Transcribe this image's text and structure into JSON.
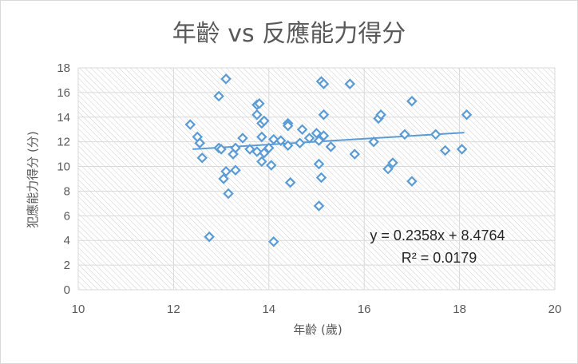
{
  "chart_data": {
    "type": "scatter",
    "title": "年齡 vs 反應能力得分",
    "xlabel": "年齡 (歲)",
    "ylabel": "犯應能力得分 (分)",
    "xlim": [
      10,
      20
    ],
    "ylim": [
      0,
      18
    ],
    "xticks": [
      10,
      12,
      14,
      16,
      18,
      20
    ],
    "yticks": [
      0,
      2,
      4,
      6,
      8,
      10,
      12,
      14,
      16,
      18
    ],
    "grid": true,
    "legend": "none",
    "marker_color": "#5B9BD5",
    "trendline": {
      "slope": 0.2358,
      "intercept": 8.4764,
      "x_range": [
        12.4,
        18.1
      ],
      "equation": "y = 0.2358x + 8.4764",
      "r_squared": "R² = 0.0179"
    },
    "points": [
      [
        12.35,
        13.4
      ],
      [
        12.5,
        12.4
      ],
      [
        12.55,
        11.9
      ],
      [
        12.6,
        10.7
      ],
      [
        12.75,
        4.3
      ],
      [
        12.95,
        11.5
      ],
      [
        12.95,
        15.7
      ],
      [
        13.0,
        11.4
      ],
      [
        13.05,
        9.0
      ],
      [
        13.1,
        9.6
      ],
      [
        13.1,
        17.1
      ],
      [
        13.15,
        7.8
      ],
      [
        13.25,
        11.0
      ],
      [
        13.3,
        11.5
      ],
      [
        13.3,
        9.7
      ],
      [
        13.45,
        12.3
      ],
      [
        13.6,
        11.4
      ],
      [
        13.75,
        11.2
      ],
      [
        13.75,
        14.2
      ],
      [
        13.75,
        15.0
      ],
      [
        13.8,
        15.1
      ],
      [
        13.85,
        13.5
      ],
      [
        13.85,
        12.4
      ],
      [
        13.85,
        10.4
      ],
      [
        13.9,
        11.1
      ],
      [
        13.9,
        13.7
      ],
      [
        14.0,
        11.5
      ],
      [
        14.05,
        10.1
      ],
      [
        14.1,
        12.2
      ],
      [
        14.1,
        3.9
      ],
      [
        14.25,
        12.1
      ],
      [
        14.4,
        11.7
      ],
      [
        14.4,
        13.5
      ],
      [
        14.4,
        13.3
      ],
      [
        14.45,
        8.7
      ],
      [
        14.65,
        11.9
      ],
      [
        14.7,
        13.0
      ],
      [
        14.85,
        12.3
      ],
      [
        15.0,
        12.7
      ],
      [
        15.05,
        12.1
      ],
      [
        15.05,
        6.8
      ],
      [
        15.05,
        10.2
      ],
      [
        15.1,
        9.1
      ],
      [
        15.1,
        16.9
      ],
      [
        15.15,
        16.7
      ],
      [
        15.15,
        12.5
      ],
      [
        15.15,
        14.2
      ],
      [
        15.3,
        11.6
      ],
      [
        15.7,
        16.7
      ],
      [
        15.8,
        11.0
      ],
      [
        16.2,
        12.0
      ],
      [
        16.3,
        13.9
      ],
      [
        16.35,
        14.2
      ],
      [
        16.5,
        9.8
      ],
      [
        16.6,
        10.3
      ],
      [
        16.85,
        12.6
      ],
      [
        17.0,
        15.3
      ],
      [
        17.0,
        8.8
      ],
      [
        17.5,
        12.6
      ],
      [
        17.7,
        11.3
      ],
      [
        18.05,
        11.4
      ],
      [
        18.15,
        14.2
      ]
    ]
  }
}
